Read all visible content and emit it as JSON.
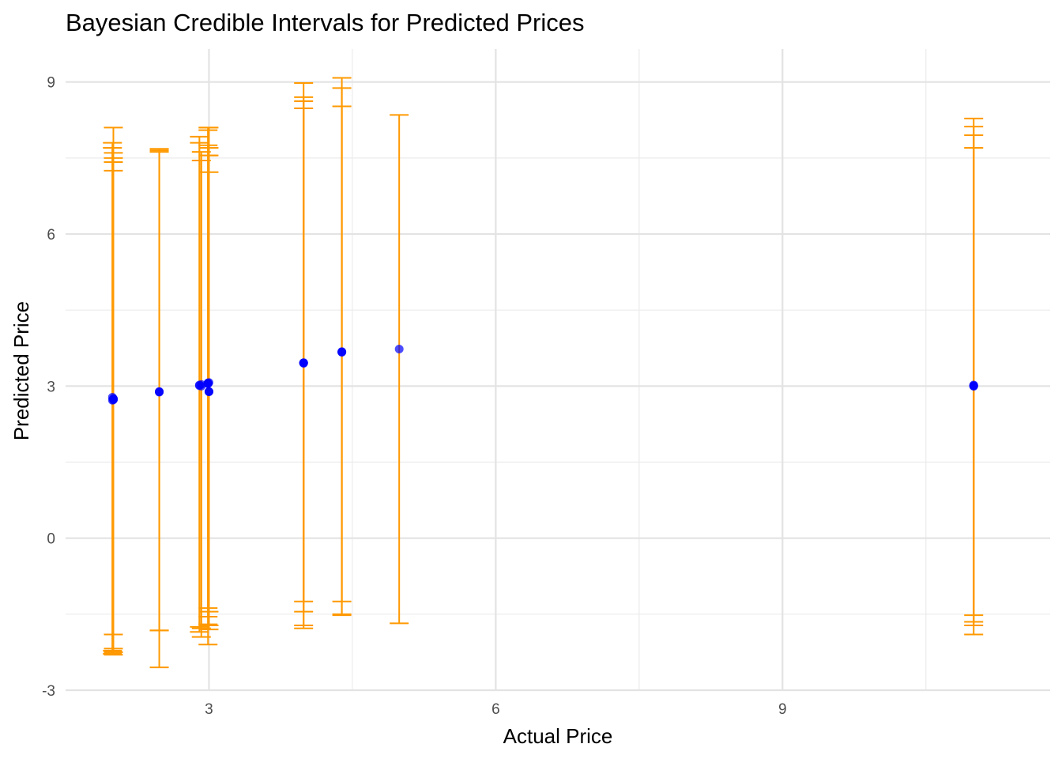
{
  "chart_data": {
    "type": "scatter",
    "title": "Bayesian Credible Intervals for Predicted Prices",
    "xlabel": "Actual Price",
    "ylabel": "Predicted Price",
    "xlim": [
      1.5,
      11.8
    ],
    "ylim": [
      -3.0,
      9.65
    ],
    "x_ticks": [
      3,
      6,
      9
    ],
    "x_tick_labels": [
      "3",
      "6",
      "9"
    ],
    "y_ticks": [
      -3,
      0,
      3,
      6,
      9
    ],
    "y_tick_labels": [
      "-3",
      "0",
      "3",
      "6",
      "9"
    ],
    "grid": true,
    "legend": "none",
    "point_color": "#0000ff",
    "interval_color": "#ff9900",
    "points": [
      {
        "x": 1.99,
        "y": 2.78,
        "lower": -2.22,
        "upper": 7.8
      },
      {
        "x": 1.99,
        "y": 2.72,
        "lower": -2.28,
        "upper": 7.7
      },
      {
        "x": 2.0,
        "y": 2.75,
        "lower": -2.25,
        "upper": 7.5
      },
      {
        "x": 2.0,
        "y": 2.73,
        "lower": -2.18,
        "upper": 7.42
      },
      {
        "x": 2.0,
        "y": 2.75,
        "lower": -1.9,
        "upper": 7.6
      },
      {
        "x": 2.0,
        "y": 2.74,
        "lower": -2.3,
        "upper": 8.1
      },
      {
        "x": 2.0,
        "y": 2.74,
        "lower": -2.25,
        "upper": 7.25
      },
      {
        "x": 2.48,
        "y": 2.89,
        "lower": -1.82,
        "upper": 7.68
      },
      {
        "x": 2.48,
        "y": 2.89,
        "lower": -2.55,
        "upper": 7.62
      },
      {
        "x": 2.48,
        "y": 2.88,
        "lower": -1.82,
        "upper": 7.65
      },
      {
        "x": 2.9,
        "y": 3.02,
        "lower": -1.75,
        "upper": 7.92
      },
      {
        "x": 2.9,
        "y": 3.01,
        "lower": -1.85,
        "upper": 7.8
      },
      {
        "x": 2.92,
        "y": 3.03,
        "lower": -1.78,
        "upper": 7.62
      },
      {
        "x": 2.92,
        "y": 3.0,
        "lower": -1.95,
        "upper": 7.45
      },
      {
        "x": 2.99,
        "y": 3.06,
        "lower": -1.38,
        "upper": 8.1
      },
      {
        "x": 2.99,
        "y": 3.06,
        "lower": -1.55,
        "upper": 8.05
      },
      {
        "x": 2.99,
        "y": 3.05,
        "lower": -1.7,
        "upper": 7.75
      },
      {
        "x": 2.99,
        "y": 3.05,
        "lower": -2.1,
        "upper": 7.55
      },
      {
        "x": 3.0,
        "y": 3.07,
        "lower": -1.8,
        "upper": 7.7
      },
      {
        "x": 3.0,
        "y": 2.89,
        "lower": -1.45,
        "upper": 8.1
      },
      {
        "x": 3.0,
        "y": 2.89,
        "lower": -1.72,
        "upper": 7.55
      },
      {
        "x": 3.0,
        "y": 2.89,
        "lower": -1.72,
        "upper": 7.22
      },
      {
        "x": 3.99,
        "y": 3.46,
        "lower": -1.72,
        "upper": 8.62
      },
      {
        "x": 3.99,
        "y": 3.46,
        "lower": -1.45,
        "upper": 8.7
      },
      {
        "x": 3.99,
        "y": 3.45,
        "lower": -1.25,
        "upper": 8.98
      },
      {
        "x": 3.99,
        "y": 3.46,
        "lower": -1.78,
        "upper": 8.48
      },
      {
        "x": 4.39,
        "y": 3.68,
        "lower": -1.5,
        "upper": 9.08
      },
      {
        "x": 4.39,
        "y": 3.67,
        "lower": -1.25,
        "upper": 8.88
      },
      {
        "x": 4.39,
        "y": 3.67,
        "lower": -1.52,
        "upper": 8.52
      },
      {
        "x": 4.99,
        "y": 3.73,
        "lower": -1.68,
        "upper": 8.35
      },
      {
        "x": 11.0,
        "y": 3.02,
        "lower": -1.52,
        "upper": 8.28
      },
      {
        "x": 11.0,
        "y": 3.01,
        "lower": -1.65,
        "upper": 8.12
      },
      {
        "x": 11.0,
        "y": 3.0,
        "lower": -1.9,
        "upper": 7.95
      },
      {
        "x": 11.0,
        "y": 3.0,
        "lower": -1.72,
        "upper": 7.7
      }
    ]
  }
}
